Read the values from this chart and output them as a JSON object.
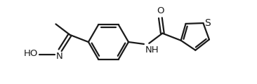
{
  "bg_color": "#ffffff",
  "line_color": "#1a1a1a",
  "line_width": 1.6,
  "font_size": 9.5,
  "figsize": [
    3.66,
    1.2
  ],
  "dpi": 100,
  "xlim": [
    0,
    10
  ],
  "ylim": [
    0,
    3.28
  ]
}
